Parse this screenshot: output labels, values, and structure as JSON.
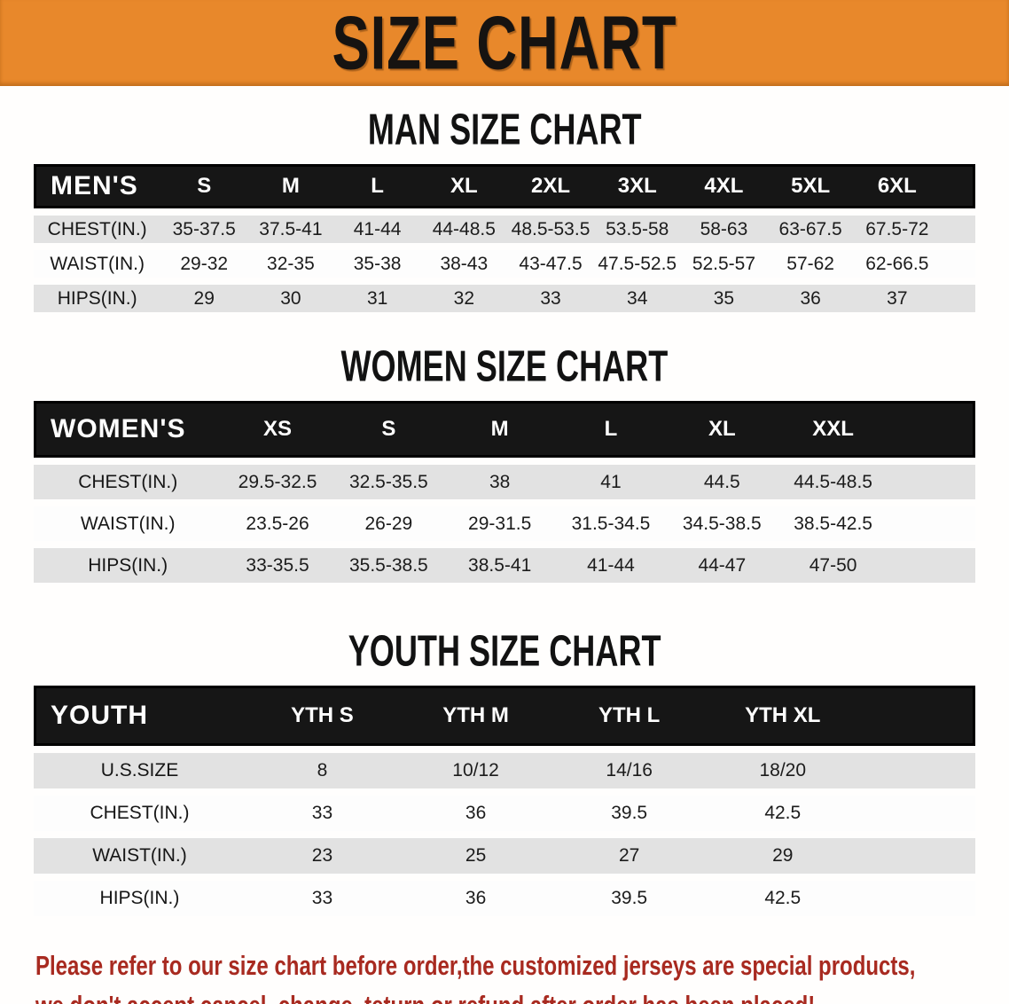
{
  "banner": {
    "title": "SIZE CHART",
    "bg_color": "#E8882B"
  },
  "sections": [
    {
      "title": "MAN SIZE CHART",
      "table": {
        "header_label": "MEN'S",
        "columns": [
          "S",
          "M",
          "L",
          "XL",
          "2XL",
          "3XL",
          "4XL",
          "5XL",
          "6XL"
        ],
        "rows": [
          {
            "label": "CHEST(IN.)",
            "values": [
              "35-37.5",
              "37.5-41",
              "41-44",
              "44-48.5",
              "48.5-53.5",
              "53.5-58",
              "58-63",
              "63-67.5",
              "67.5-72"
            ]
          },
          {
            "label": "WAIST(IN.)",
            "values": [
              "29-32",
              "32-35",
              "35-38",
              "38-43",
              "43-47.5",
              "47.5-52.5",
              "52.5-57",
              "57-62",
              "62-66.5"
            ]
          },
          {
            "label": "HIPS(IN.)",
            "values": [
              "29",
              "30",
              "31",
              "32",
              "33",
              "34",
              "35",
              "36",
              "37"
            ]
          }
        ]
      }
    },
    {
      "title": "WOMEN SIZE CHART",
      "table": {
        "header_label": "WOMEN'S",
        "columns": [
          "XS",
          "S",
          "M",
          "L",
          "XL",
          "XXL"
        ],
        "rows": [
          {
            "label": "CHEST(IN.)",
            "values": [
              "29.5-32.5",
              "32.5-35.5",
              "38",
              "41",
              "44.5",
              "44.5-48.5"
            ]
          },
          {
            "label": "WAIST(IN.)",
            "values": [
              "23.5-26",
              "26-29",
              "29-31.5",
              "31.5-34.5",
              "34.5-38.5",
              "38.5-42.5"
            ]
          },
          {
            "label": "HIPS(IN.)",
            "values": [
              "33-35.5",
              "35.5-38.5",
              "38.5-41",
              "41-44",
              "44-47",
              "47-50"
            ]
          }
        ]
      }
    },
    {
      "title": "YOUTH SIZE CHART",
      "table": {
        "header_label": "YOUTH",
        "columns": [
          "YTH S",
          "YTH M",
          "YTH L",
          "YTH XL"
        ],
        "rows": [
          {
            "label": "U.S.SIZE",
            "values": [
              "8",
              "10/12",
              "14/16",
              "18/20"
            ]
          },
          {
            "label": "CHEST(IN.)",
            "values": [
              "33",
              "36",
              "39.5",
              "42.5"
            ]
          },
          {
            "label": "WAIST(IN.)",
            "values": [
              "23",
              "25",
              "27",
              "29"
            ]
          },
          {
            "label": "HIPS(IN.)",
            "values": [
              "33",
              "36",
              "39.5",
              "42.5"
            ]
          }
        ]
      }
    }
  ],
  "disclaimer": {
    "lines": [
      "Please refer to our size chart before order,the customized jerseys are special products,",
      "we don't accept cancel, change, teturn or refund after order has been placed!"
    ],
    "color": "#A82A20"
  }
}
